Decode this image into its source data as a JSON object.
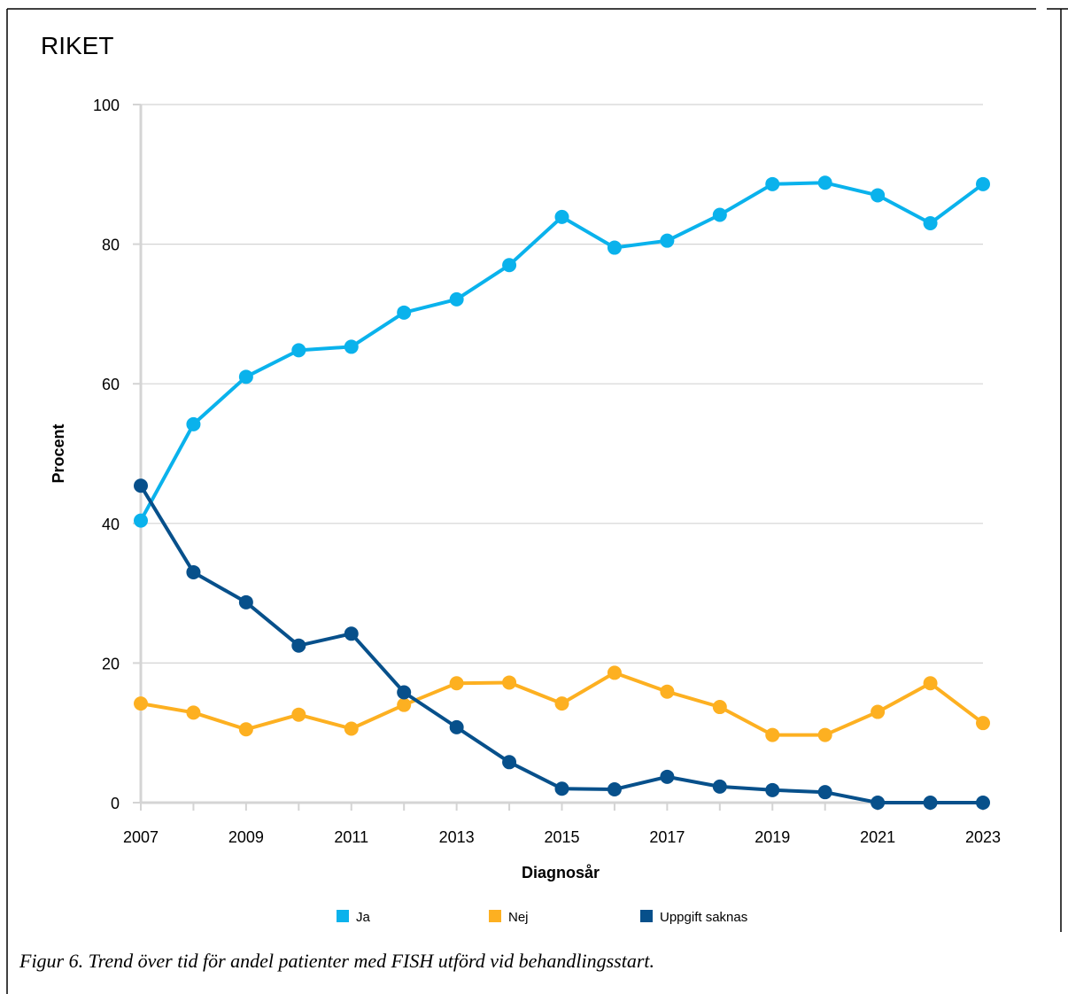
{
  "chart_data": {
    "type": "line",
    "title": "RIKET",
    "xlabel": "Diagnosår",
    "ylabel": "Procent",
    "ylim": [
      0,
      100
    ],
    "yticks": [
      0,
      20,
      40,
      60,
      80,
      100
    ],
    "x": [
      2007,
      2008,
      2009,
      2010,
      2011,
      2012,
      2013,
      2014,
      2015,
      2016,
      2017,
      2018,
      2019,
      2020,
      2021,
      2022,
      2023
    ],
    "xtick_labels": [
      "2007",
      "2009",
      "2011",
      "2013",
      "2015",
      "2017",
      "2019",
      "2021",
      "2023"
    ],
    "grid": true,
    "legend_position": "bottom",
    "series": [
      {
        "name": "Ja",
        "color": "#0ab2ec",
        "values": [
          40.4,
          54.2,
          61.0,
          64.8,
          65.3,
          70.2,
          72.1,
          77.0,
          83.9,
          79.5,
          80.5,
          84.2,
          88.6,
          88.8,
          87.0,
          83.0,
          88.6
        ]
      },
      {
        "name": "Nej",
        "color": "#fdb021",
        "values": [
          14.2,
          12.9,
          10.5,
          12.6,
          10.6,
          14.0,
          17.1,
          17.2,
          14.2,
          18.6,
          15.9,
          13.7,
          9.7,
          9.7,
          13.0,
          17.1,
          11.4
        ]
      },
      {
        "name": "Uppgift saknas",
        "color": "#07508b",
        "values": [
          45.4,
          33.0,
          28.7,
          22.5,
          24.2,
          15.8,
          10.8,
          5.8,
          2.0,
          1.9,
          3.7,
          2.3,
          1.8,
          1.5,
          0.0,
          0.0,
          0.0
        ]
      }
    ]
  },
  "caption": "Figur 6. Trend över tid för andel patienter med FISH utförd vid behandlingsstart."
}
